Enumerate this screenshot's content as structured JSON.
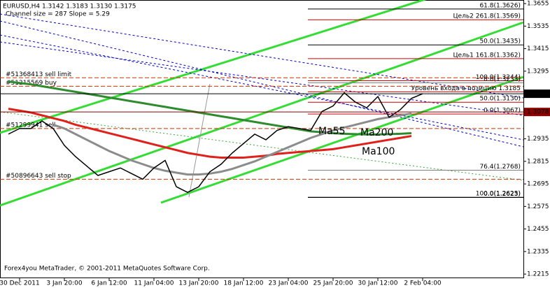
{
  "chart_data": {
    "type": "line",
    "title": "EURUSD,H4  1.3142 1.3183 1.3130 1.3175",
    "subtitle": "Channel size = 287 Slope = 5.29",
    "footer": "Forex4you MetaTrader, © 2001-2011 MetaQuotes Software Corp.",
    "categories": [
      null,
      "30 Dec 2011",
      null,
      null,
      null,
      "3 Jan 20:00",
      null,
      null,
      null,
      "6 Jan 12:00",
      null,
      null,
      null,
      "11 Jan 04:00",
      null,
      null,
      null,
      "13 Jan 20:00",
      null,
      null,
      null,
      "18 Jan 12:00",
      null,
      null,
      null,
      "23 Jan 04:00",
      null,
      null,
      null,
      "25 Jan 20:00",
      null,
      null,
      null,
      "30 Jan 12:00",
      null,
      null,
      null,
      "2 Feb 04:00"
    ],
    "series": [
      {
        "color": "#000000",
        "values": [
          1.296,
          1.299,
          1.299,
          1.303,
          1.299,
          1.29,
          1.284,
          1.279,
          1.274,
          1.276,
          1.278,
          1.275,
          1.272,
          1.278,
          1.282,
          1.268,
          1.265,
          1.268,
          1.276,
          1.28,
          1.286,
          1.291,
          1.296,
          1.293,
          1.298,
          1.3,
          1.299,
          1.298,
          1.308,
          1.311,
          1.318,
          1.313,
          1.31,
          1.316,
          1.305,
          1.309,
          1.315,
          1.3175
        ]
      },
      {
        "name": "Ma55",
        "color": "#8c8c8c",
        "values": [
          null,
          null,
          null,
          null,
          1.301,
          1.299,
          1.296,
          1.293,
          1.29,
          1.287,
          1.2845,
          1.282,
          1.28,
          1.278,
          1.2765,
          1.2755,
          1.2745,
          1.2745,
          1.275,
          1.276,
          1.2775,
          1.2795,
          1.2815,
          1.284,
          1.2865,
          1.289,
          1.2915,
          1.294,
          1.296,
          1.298,
          1.2995,
          1.301,
          1.3025,
          1.304,
          1.305,
          1.306,
          1.307,
          null
        ]
      },
      {
        "name": "Ma200",
        "color": "#2e8b2e",
        "values": [
          1.324,
          1.3232,
          1.3225,
          1.3215,
          1.3205,
          1.3195,
          1.3185,
          1.3175,
          1.3165,
          1.3155,
          1.3145,
          1.3135,
          1.3125,
          1.3115,
          1.3105,
          1.3095,
          1.3085,
          1.3075,
          1.3065,
          1.3055,
          1.3045,
          1.3035,
          1.3025,
          1.3015,
          1.3005,
          1.2995,
          1.2985,
          1.2975,
          1.297,
          1.2965,
          1.2962,
          1.296,
          1.2958,
          1.2958,
          1.296,
          1.2962,
          1.2965,
          null
        ]
      },
      {
        "name": "Ma100",
        "color": "#e0201a",
        "values": [
          1.3095,
          1.3085,
          1.3075,
          1.306,
          1.3045,
          1.303,
          1.301,
          1.2995,
          1.298,
          1.2965,
          1.295,
          1.2935,
          1.292,
          1.2905,
          1.289,
          1.2875,
          1.286,
          1.285,
          1.284,
          1.2835,
          1.2835,
          1.2835,
          1.284,
          1.2845,
          1.2855,
          1.286,
          1.2865,
          1.287,
          1.2875,
          1.288,
          1.289,
          1.29,
          1.291,
          1.292,
          1.293,
          1.294,
          1.295,
          null
        ]
      }
    ],
    "ylim": [
      1.2193,
      1.3674
    ],
    "yticks": [
      1.3655,
      1.3535,
      1.3415,
      1.3295,
      1.2935,
      1.2815,
      1.2695,
      1.2575,
      1.2455,
      1.2335,
      1.2215
    ],
    "price_boxes": [
      1.3175,
      1.3078
    ],
    "levels": [
      {
        "label": "61.8(1.3626)",
        "value": 1.3626,
        "color": "#000000"
      },
      {
        "label": "Цель2 261.8(1.3569)",
        "value": 1.3569,
        "color": "#cc0000"
      },
      {
        "label": "50.0(1.3435)",
        "value": 1.3435,
        "color": "#000000"
      },
      {
        "label": "Цель1 161.8(1.3362)",
        "value": 1.3362,
        "color": "#cc0000"
      },
      {
        "label": "100.0(1.3244)",
        "value": 1.3244,
        "color": "#cc0000"
      },
      {
        "label": "0.0(1.3233)",
        "value": 1.3233,
        "color": "#808080"
      },
      {
        "label": "Уровень входа в позицию 1.3185",
        "value": 1.3185,
        "color": "#cc0000"
      },
      {
        "label": "50.0(1.3130)",
        "value": 1.313,
        "color": "#cc0000"
      },
      {
        "label": "0.0(1.3067)",
        "value": 1.3067,
        "color": "#cc0000"
      },
      {
        "label": "76.4(1.2768)",
        "value": 1.2768,
        "color": "#808080"
      },
      {
        "label": "100.0(1.2625)",
        "value": 1.2625,
        "color": "#808080"
      },
      {
        "label": "0.0(1.2623)",
        "value": 1.2623,
        "color": "#000000"
      }
    ],
    "orders": [
      {
        "label": "#51368413 sell limit",
        "value": 1.326
      },
      {
        "label": "#51215569 buy",
        "value": 1.3215
      },
      {
        "label": "#51299941 sell",
        "value": 1.299
      },
      {
        "label": "#50896643 sell stop",
        "value": 1.272
      }
    ]
  }
}
